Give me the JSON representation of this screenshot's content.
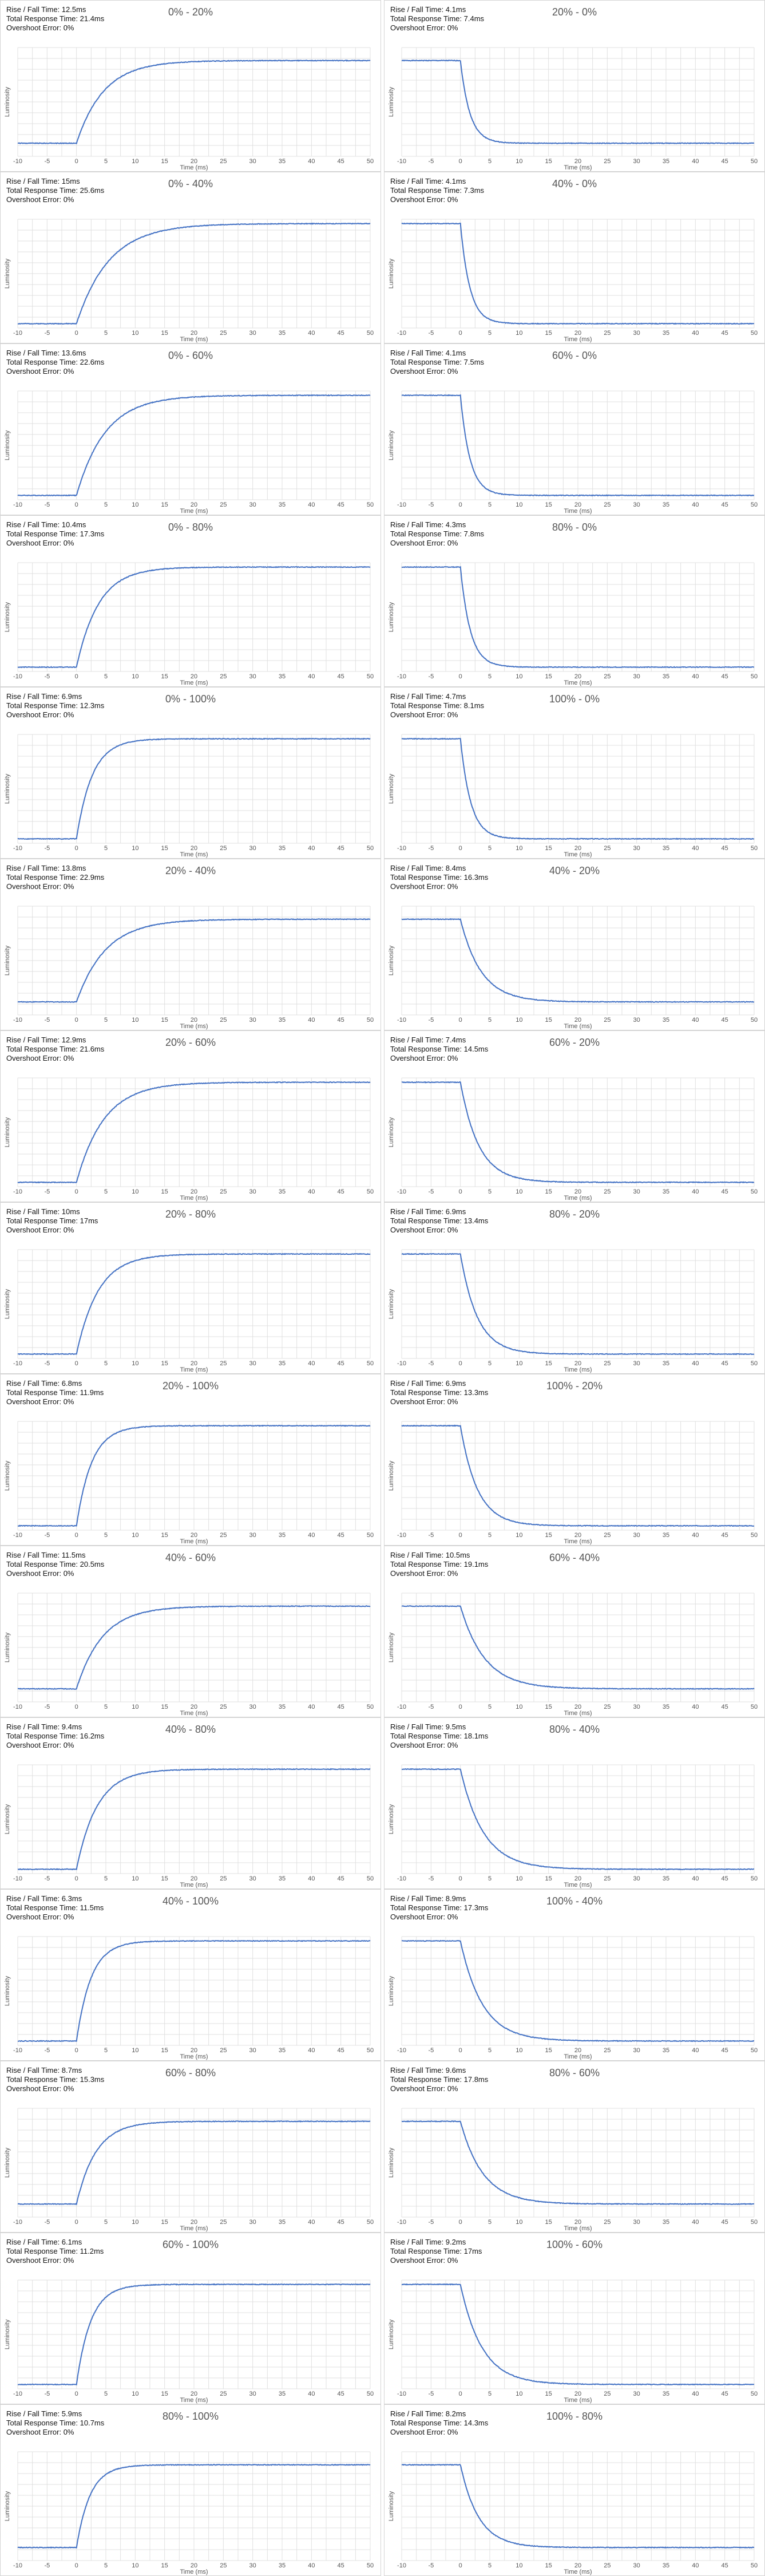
{
  "line_color": "#4472c4",
  "grid_color": "#e0e0e0",
  "chart_data": [
    {
      "type": "line",
      "title": "0% - 20%",
      "direction": "rise",
      "rise_fall_time": "Rise / Fall Time: 12.5ms",
      "total_response_time": "Total Response Time: 21.4ms",
      "overshoot_error": "Overshoot Error: 0%",
      "xlabel": "Time (ms)",
      "ylabel": "Luminosity",
      "xlim": [
        -10,
        50
      ],
      "x_ticks": [
        -10,
        -5,
        0,
        5,
        10,
        15,
        20,
        25,
        30,
        35,
        40,
        45,
        50
      ],
      "onset_ms": 0,
      "settle_ms": 21.4,
      "start_level": 0.12,
      "end_level": 0.88
    },
    {
      "type": "line",
      "title": "20% - 0%",
      "direction": "fall",
      "rise_fall_time": "Rise / Fall Time: 4.1ms",
      "total_response_time": "Total Response Time: 7.4ms",
      "overshoot_error": "Overshoot Error: 0%",
      "xlabel": "Time (ms)",
      "ylabel": "Luminosity",
      "xlim": [
        -10,
        50
      ],
      "x_ticks": [
        -10,
        -5,
        0,
        5,
        10,
        15,
        20,
        25,
        30,
        35,
        40,
        45,
        50
      ],
      "onset_ms": 0,
      "settle_ms": 7.4,
      "start_level": 0.88,
      "end_level": 0.12
    },
    {
      "type": "line",
      "title": "0% - 40%",
      "direction": "rise",
      "rise_fall_time": "Rise / Fall Time: 15ms",
      "total_response_time": "Total Response Time: 25.6ms",
      "overshoot_error": "Overshoot Error: 0%",
      "xlabel": "Time (ms)",
      "ylabel": "Luminosity",
      "xlim": [
        -10,
        50
      ],
      "x_ticks": [
        -10,
        -5,
        0,
        5,
        10,
        15,
        20,
        25,
        30,
        35,
        40,
        45,
        50
      ],
      "onset_ms": 0,
      "settle_ms": 25.6,
      "start_level": 0.04,
      "end_level": 0.96
    },
    {
      "type": "line",
      "title": "40% - 0%",
      "direction": "fall",
      "rise_fall_time": "Rise / Fall Time: 4.1ms",
      "total_response_time": "Total Response Time: 7.3ms",
      "overshoot_error": "Overshoot Error: 0%",
      "xlabel": "Time (ms)",
      "ylabel": "Luminosity",
      "xlim": [
        -10,
        50
      ],
      "x_ticks": [
        -10,
        -5,
        0,
        5,
        10,
        15,
        20,
        25,
        30,
        35,
        40,
        45,
        50
      ],
      "onset_ms": 0,
      "settle_ms": 7.3,
      "start_level": 0.96,
      "end_level": 0.04
    },
    {
      "type": "line",
      "title": "0% - 60%",
      "direction": "rise",
      "rise_fall_time": "Rise / Fall Time: 13.6ms",
      "total_response_time": "Total Response Time: 22.6ms",
      "overshoot_error": "Overshoot Error: 0%",
      "xlabel": "Time (ms)",
      "ylabel": "Luminosity",
      "xlim": [
        -10,
        50
      ],
      "x_ticks": [
        -10,
        -5,
        0,
        5,
        10,
        15,
        20,
        25,
        30,
        35,
        40,
        45,
        50
      ],
      "onset_ms": 0,
      "settle_ms": 22.6,
      "start_level": 0.04,
      "end_level": 0.96
    },
    {
      "type": "line",
      "title": "60% - 0%",
      "direction": "fall",
      "rise_fall_time": "Rise / Fall Time: 4.1ms",
      "total_response_time": "Total Response Time: 7.5ms",
      "overshoot_error": "Overshoot Error: 0%",
      "xlabel": "Time (ms)",
      "ylabel": "Luminosity",
      "xlim": [
        -10,
        50
      ],
      "x_ticks": [
        -10,
        -5,
        0,
        5,
        10,
        15,
        20,
        25,
        30,
        35,
        40,
        45,
        50
      ],
      "onset_ms": 0,
      "settle_ms": 7.5,
      "start_level": 0.96,
      "end_level": 0.04
    },
    {
      "type": "line",
      "title": "0% - 80%",
      "direction": "rise",
      "rise_fall_time": "Rise / Fall Time: 10.4ms",
      "total_response_time": "Total Response Time: 17.3ms",
      "overshoot_error": "Overshoot Error: 0%",
      "xlabel": "Time (ms)",
      "ylabel": "Luminosity",
      "xlim": [
        -10,
        50
      ],
      "x_ticks": [
        -10,
        -5,
        0,
        5,
        10,
        15,
        20,
        25,
        30,
        35,
        40,
        45,
        50
      ],
      "onset_ms": 0,
      "settle_ms": 17.3,
      "start_level": 0.04,
      "end_level": 0.96
    },
    {
      "type": "line",
      "title": "80% - 0%",
      "direction": "fall",
      "rise_fall_time": "Rise / Fall Time: 4.3ms",
      "total_response_time": "Total Response Time: 7.8ms",
      "overshoot_error": "Overshoot Error: 0%",
      "xlabel": "Time (ms)",
      "ylabel": "Luminosity",
      "xlim": [
        -10,
        50
      ],
      "x_ticks": [
        -10,
        -5,
        0,
        5,
        10,
        15,
        20,
        25,
        30,
        35,
        40,
        45,
        50
      ],
      "onset_ms": 0,
      "settle_ms": 7.8,
      "start_level": 0.96,
      "end_level": 0.04
    },
    {
      "type": "line",
      "title": "0% - 100%",
      "direction": "rise",
      "rise_fall_time": "Rise / Fall Time: 6.9ms",
      "total_response_time": "Total Response Time: 12.3ms",
      "overshoot_error": "Overshoot Error: 0%",
      "xlabel": "Time (ms)",
      "ylabel": "Luminosity",
      "xlim": [
        -10,
        50
      ],
      "x_ticks": [
        -10,
        -5,
        0,
        5,
        10,
        15,
        20,
        25,
        30,
        35,
        40,
        45,
        50
      ],
      "onset_ms": 0,
      "settle_ms": 12.3,
      "start_level": 0.04,
      "end_level": 0.96
    },
    {
      "type": "line",
      "title": "100% - 0%",
      "direction": "fall",
      "rise_fall_time": "Rise / Fall Time: 4.7ms",
      "total_response_time": "Total Response Time: 8.1ms",
      "overshoot_error": "Overshoot Error: 0%",
      "xlabel": "Time (ms)",
      "ylabel": "Luminosity",
      "xlim": [
        -10,
        50
      ],
      "x_ticks": [
        -10,
        -5,
        0,
        5,
        10,
        15,
        20,
        25,
        30,
        35,
        40,
        45,
        50
      ],
      "onset_ms": 0,
      "settle_ms": 8.1,
      "start_level": 0.96,
      "end_level": 0.04
    },
    {
      "type": "line",
      "title": "20% - 40%",
      "direction": "rise",
      "rise_fall_time": "Rise / Fall Time: 13.8ms",
      "total_response_time": "Total Response Time: 22.9ms",
      "overshoot_error": "Overshoot Error: 0%",
      "xlabel": "Time (ms)",
      "ylabel": "Luminosity",
      "xlim": [
        -10,
        50
      ],
      "x_ticks": [
        -10,
        -5,
        0,
        5,
        10,
        15,
        20,
        25,
        30,
        35,
        40,
        45,
        50
      ],
      "onset_ms": 0,
      "settle_ms": 22.9,
      "start_level": 0.12,
      "end_level": 0.88
    },
    {
      "type": "line",
      "title": "40% - 20%",
      "direction": "fall",
      "rise_fall_time": "Rise / Fall Time: 8.4ms",
      "total_response_time": "Total Response Time: 16.3ms",
      "overshoot_error": "Overshoot Error: 0%",
      "xlabel": "Time (ms)",
      "ylabel": "Luminosity",
      "xlim": [
        -10,
        50
      ],
      "x_ticks": [
        -10,
        -5,
        0,
        5,
        10,
        15,
        20,
        25,
        30,
        35,
        40,
        45,
        50
      ],
      "onset_ms": 0,
      "settle_ms": 16.3,
      "start_level": 0.88,
      "end_level": 0.12
    },
    {
      "type": "line",
      "title": "20% - 60%",
      "direction": "rise",
      "rise_fall_time": "Rise / Fall Time: 12.9ms",
      "total_response_time": "Total Response Time: 21.6ms",
      "overshoot_error": "Overshoot Error: 0%",
      "xlabel": "Time (ms)",
      "ylabel": "Luminosity",
      "xlim": [
        -10,
        50
      ],
      "x_ticks": [
        -10,
        -5,
        0,
        5,
        10,
        15,
        20,
        25,
        30,
        35,
        40,
        45,
        50
      ],
      "onset_ms": 0,
      "settle_ms": 21.6,
      "start_level": 0.04,
      "end_level": 0.96
    },
    {
      "type": "line",
      "title": "60% - 20%",
      "direction": "fall",
      "rise_fall_time": "Rise / Fall Time: 7.4ms",
      "total_response_time": "Total Response Time: 14.5ms",
      "overshoot_error": "Overshoot Error: 0%",
      "xlabel": "Time (ms)",
      "ylabel": "Luminosity",
      "xlim": [
        -10,
        50
      ],
      "x_ticks": [
        -10,
        -5,
        0,
        5,
        10,
        15,
        20,
        25,
        30,
        35,
        40,
        45,
        50
      ],
      "onset_ms": 0,
      "settle_ms": 14.5,
      "start_level": 0.96,
      "end_level": 0.04
    },
    {
      "type": "line",
      "title": "20% - 80%",
      "direction": "rise",
      "rise_fall_time": "Rise / Fall Time: 10ms",
      "total_response_time": "Total Response Time: 17ms",
      "overshoot_error": "Overshoot Error: 0%",
      "xlabel": "Time (ms)",
      "ylabel": "Luminosity",
      "xlim": [
        -10,
        50
      ],
      "x_ticks": [
        -10,
        -5,
        0,
        5,
        10,
        15,
        20,
        25,
        30,
        35,
        40,
        45,
        50
      ],
      "onset_ms": 0,
      "settle_ms": 17.0,
      "start_level": 0.04,
      "end_level": 0.96
    },
    {
      "type": "line",
      "title": "80% - 20%",
      "direction": "fall",
      "rise_fall_time": "Rise / Fall Time: 6.9ms",
      "total_response_time": "Total Response Time: 13.4ms",
      "overshoot_error": "Overshoot Error: 0%",
      "xlabel": "Time (ms)",
      "ylabel": "Luminosity",
      "xlim": [
        -10,
        50
      ],
      "x_ticks": [
        -10,
        -5,
        0,
        5,
        10,
        15,
        20,
        25,
        30,
        35,
        40,
        45,
        50
      ],
      "onset_ms": 0,
      "settle_ms": 13.4,
      "start_level": 0.96,
      "end_level": 0.04
    },
    {
      "type": "line",
      "title": "20% - 100%",
      "direction": "rise",
      "rise_fall_time": "Rise / Fall Time: 6.8ms",
      "total_response_time": "Total Response Time: 11.9ms",
      "overshoot_error": "Overshoot Error: 0%",
      "xlabel": "Time (ms)",
      "ylabel": "Luminosity",
      "xlim": [
        -10,
        50
      ],
      "x_ticks": [
        -10,
        -5,
        0,
        5,
        10,
        15,
        20,
        25,
        30,
        35,
        40,
        45,
        50
      ],
      "onset_ms": 0,
      "settle_ms": 11.9,
      "start_level": 0.04,
      "end_level": 0.96
    },
    {
      "type": "line",
      "title": "100% - 20%",
      "direction": "fall",
      "rise_fall_time": "Rise / Fall Time: 6.9ms",
      "total_response_time": "Total Response Time: 13.3ms",
      "overshoot_error": "Overshoot Error: 0%",
      "xlabel": "Time (ms)",
      "ylabel": "Luminosity",
      "xlim": [
        -10,
        50
      ],
      "x_ticks": [
        -10,
        -5,
        0,
        5,
        10,
        15,
        20,
        25,
        30,
        35,
        40,
        45,
        50
      ],
      "onset_ms": 0,
      "settle_ms": 13.3,
      "start_level": 0.96,
      "end_level": 0.04
    },
    {
      "type": "line",
      "title": "40% - 60%",
      "direction": "rise",
      "rise_fall_time": "Rise / Fall Time: 11.5ms",
      "total_response_time": "Total Response Time: 20.5ms",
      "overshoot_error": "Overshoot Error: 0%",
      "xlabel": "Time (ms)",
      "ylabel": "Luminosity",
      "xlim": [
        -10,
        50
      ],
      "x_ticks": [
        -10,
        -5,
        0,
        5,
        10,
        15,
        20,
        25,
        30,
        35,
        40,
        45,
        50
      ],
      "onset_ms": 0,
      "settle_ms": 20.5,
      "start_level": 0.12,
      "end_level": 0.88
    },
    {
      "type": "line",
      "title": "60% - 40%",
      "direction": "fall",
      "rise_fall_time": "Rise / Fall Time: 10.5ms",
      "total_response_time": "Total Response Time: 19.1ms",
      "overshoot_error": "Overshoot Error: 0%",
      "xlabel": "Time (ms)",
      "ylabel": "Luminosity",
      "xlim": [
        -10,
        50
      ],
      "x_ticks": [
        -10,
        -5,
        0,
        5,
        10,
        15,
        20,
        25,
        30,
        35,
        40,
        45,
        50
      ],
      "onset_ms": 0,
      "settle_ms": 19.1,
      "start_level": 0.88,
      "end_level": 0.12
    },
    {
      "type": "line",
      "title": "40% - 80%",
      "direction": "rise",
      "rise_fall_time": "Rise / Fall Time: 9.4ms",
      "total_response_time": "Total Response Time: 16.2ms",
      "overshoot_error": "Overshoot Error: 0%",
      "xlabel": "Time (ms)",
      "ylabel": "Luminosity",
      "xlim": [
        -10,
        50
      ],
      "x_ticks": [
        -10,
        -5,
        0,
        5,
        10,
        15,
        20,
        25,
        30,
        35,
        40,
        45,
        50
      ],
      "onset_ms": 0,
      "settle_ms": 16.2,
      "start_level": 0.04,
      "end_level": 0.96
    },
    {
      "type": "line",
      "title": "80% - 40%",
      "direction": "fall",
      "rise_fall_time": "Rise / Fall Time: 9.5ms",
      "total_response_time": "Total Response Time: 18.1ms",
      "overshoot_error": "Overshoot Error: 0%",
      "xlabel": "Time (ms)",
      "ylabel": "Luminosity",
      "xlim": [
        -10,
        50
      ],
      "x_ticks": [
        -10,
        -5,
        0,
        5,
        10,
        15,
        20,
        25,
        30,
        35,
        40,
        45,
        50
      ],
      "onset_ms": 0,
      "settle_ms": 18.1,
      "start_level": 0.96,
      "end_level": 0.04
    },
    {
      "type": "line",
      "title": "40% - 100%",
      "direction": "rise",
      "rise_fall_time": "Rise / Fall Time: 6.3ms",
      "total_response_time": "Total Response Time: 11.5ms",
      "overshoot_error": "Overshoot Error: 0%",
      "xlabel": "Time (ms)",
      "ylabel": "Luminosity",
      "xlim": [
        -10,
        50
      ],
      "x_ticks": [
        -10,
        -5,
        0,
        5,
        10,
        15,
        20,
        25,
        30,
        35,
        40,
        45,
        50
      ],
      "onset_ms": 0,
      "settle_ms": 11.5,
      "start_level": 0.04,
      "end_level": 0.96
    },
    {
      "type": "line",
      "title": "100% - 40%",
      "direction": "fall",
      "rise_fall_time": "Rise / Fall Time: 8.9ms",
      "total_response_time": "Total Response Time: 17.3ms",
      "overshoot_error": "Overshoot Error: 0%",
      "xlabel": "Time (ms)",
      "ylabel": "Luminosity",
      "xlim": [
        -10,
        50
      ],
      "x_ticks": [
        -10,
        -5,
        0,
        5,
        10,
        15,
        20,
        25,
        30,
        35,
        40,
        45,
        50
      ],
      "onset_ms": 0,
      "settle_ms": 17.3,
      "start_level": 0.96,
      "end_level": 0.04
    },
    {
      "type": "line",
      "title": "60% - 80%",
      "direction": "rise",
      "rise_fall_time": "Rise / Fall Time: 8.7ms",
      "total_response_time": "Total Response Time: 15.3ms",
      "overshoot_error": "Overshoot Error: 0%",
      "xlabel": "Time (ms)",
      "ylabel": "Luminosity",
      "xlim": [
        -10,
        50
      ],
      "x_ticks": [
        -10,
        -5,
        0,
        5,
        10,
        15,
        20,
        25,
        30,
        35,
        40,
        45,
        50
      ],
      "onset_ms": 0,
      "settle_ms": 15.3,
      "start_level": 0.12,
      "end_level": 0.88
    },
    {
      "type": "line",
      "title": "80% - 60%",
      "direction": "fall",
      "rise_fall_time": "Rise / Fall Time: 9.6ms",
      "total_response_time": "Total Response Time: 17.8ms",
      "overshoot_error": "Overshoot Error: 0%",
      "xlabel": "Time (ms)",
      "ylabel": "Luminosity",
      "xlim": [
        -10,
        50
      ],
      "x_ticks": [
        -10,
        -5,
        0,
        5,
        10,
        15,
        20,
        25,
        30,
        35,
        40,
        45,
        50
      ],
      "onset_ms": 0,
      "settle_ms": 17.8,
      "start_level": 0.88,
      "end_level": 0.12
    },
    {
      "type": "line",
      "title": "60% - 100%",
      "direction": "rise",
      "rise_fall_time": "Rise / Fall Time: 6.1ms",
      "total_response_time": "Total Response Time: 11.2ms",
      "overshoot_error": "Overshoot Error: 0%",
      "xlabel": "Time (ms)",
      "ylabel": "Luminosity",
      "xlim": [
        -10,
        50
      ],
      "x_ticks": [
        -10,
        -5,
        0,
        5,
        10,
        15,
        20,
        25,
        30,
        35,
        40,
        45,
        50
      ],
      "onset_ms": 0,
      "settle_ms": 11.2,
      "start_level": 0.04,
      "end_level": 0.96
    },
    {
      "type": "line",
      "title": "100% - 60%",
      "direction": "fall",
      "rise_fall_time": "Rise / Fall Time: 9.2ms",
      "total_response_time": "Total Response Time: 17ms",
      "overshoot_error": "Overshoot Error: 0%",
      "xlabel": "Time (ms)",
      "ylabel": "Luminosity",
      "xlim": [
        -10,
        50
      ],
      "x_ticks": [
        -10,
        -5,
        0,
        5,
        10,
        15,
        20,
        25,
        30,
        35,
        40,
        45,
        50
      ],
      "onset_ms": 0,
      "settle_ms": 17.0,
      "start_level": 0.96,
      "end_level": 0.04
    },
    {
      "type": "line",
      "title": "80% - 100%",
      "direction": "rise",
      "rise_fall_time": "Rise / Fall Time: 5.9ms",
      "total_response_time": "Total Response Time: 10.7ms",
      "overshoot_error": "Overshoot Error: 0%",
      "xlabel": "Time (ms)",
      "ylabel": "Luminosity",
      "xlim": [
        -10,
        50
      ],
      "x_ticks": [
        -10,
        -5,
        0,
        5,
        10,
        15,
        20,
        25,
        30,
        35,
        40,
        45,
        50
      ],
      "onset_ms": 0,
      "settle_ms": 10.7,
      "start_level": 0.12,
      "end_level": 0.88
    },
    {
      "type": "line",
      "title": "100% - 80%",
      "direction": "fall",
      "rise_fall_time": "Rise / Fall Time: 8.2ms",
      "total_response_time": "Total Response Time: 14.3ms",
      "overshoot_error": "Overshoot Error: 0%",
      "xlabel": "Time (ms)",
      "ylabel": "Luminosity",
      "xlim": [
        -10,
        50
      ],
      "x_ticks": [
        -10,
        -5,
        0,
        5,
        10,
        15,
        20,
        25,
        30,
        35,
        40,
        45,
        50
      ],
      "onset_ms": 0,
      "settle_ms": 14.3,
      "start_level": 0.88,
      "end_level": 0.12
    }
  ]
}
